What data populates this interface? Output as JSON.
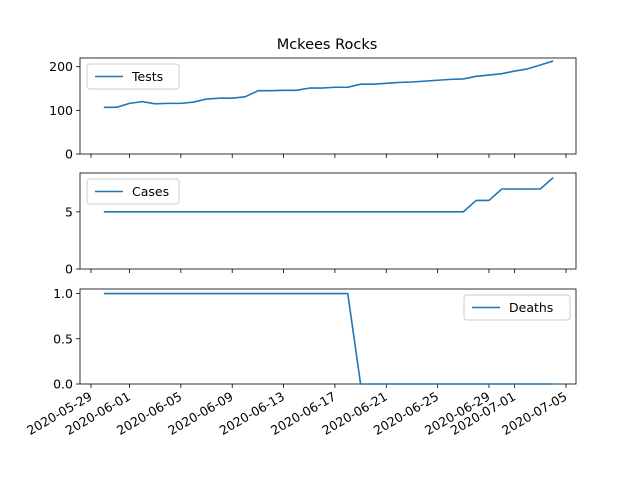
{
  "figure_title": "Mckees Rocks",
  "chart_data": {
    "type": "line",
    "title": "Mckees Rocks",
    "x_tick_labels": [
      "2020-05-29",
      "2020-06-01",
      "2020-06-05",
      "2020-06-09",
      "2020-06-13",
      "2020-06-17",
      "2020-06-21",
      "2020-06-25",
      "2020-06-29",
      "2020-07-01",
      "2020-07-05"
    ],
    "x": [
      "2020-05-30",
      "2020-05-31",
      "2020-06-01",
      "2020-06-02",
      "2020-06-03",
      "2020-06-04",
      "2020-06-05",
      "2020-06-06",
      "2020-06-07",
      "2020-06-08",
      "2020-06-09",
      "2020-06-10",
      "2020-06-11",
      "2020-06-12",
      "2020-06-13",
      "2020-06-14",
      "2020-06-15",
      "2020-06-16",
      "2020-06-17",
      "2020-06-18",
      "2020-06-19",
      "2020-06-20",
      "2020-06-21",
      "2020-06-22",
      "2020-06-23",
      "2020-06-24",
      "2020-06-25",
      "2020-06-26",
      "2020-06-27",
      "2020-06-28",
      "2020-06-29",
      "2020-06-30",
      "2020-07-01",
      "2020-07-02",
      "2020-07-03",
      "2020-07-04"
    ],
    "panels": [
      {
        "series_name": "Tests",
        "legend_position": "upper-left",
        "ylim": [
          0,
          220
        ],
        "yticks": [
          0,
          100,
          200
        ],
        "ytick_labels": [
          "0",
          "100",
          "200"
        ],
        "values": [
          107,
          107,
          116,
          120,
          115,
          116,
          116,
          119,
          126,
          128,
          128,
          131,
          145,
          145,
          146,
          146,
          151,
          151,
          153,
          153,
          160,
          160,
          162,
          164,
          165,
          167,
          169,
          171,
          172,
          178,
          181,
          184,
          190,
          195,
          204,
          213
        ]
      },
      {
        "series_name": "Cases",
        "legend_position": "upper-left",
        "ylim": [
          0,
          8.4
        ],
        "yticks": [
          0,
          5
        ],
        "ytick_labels": [
          "0",
          "5"
        ],
        "values": [
          5,
          5,
          5,
          5,
          5,
          5,
          5,
          5,
          5,
          5,
          5,
          5,
          5,
          5,
          5,
          5,
          5,
          5,
          5,
          5,
          5,
          5,
          5,
          5,
          5,
          5,
          5,
          5,
          5,
          6,
          6,
          7,
          7,
          7,
          7,
          8
        ]
      },
      {
        "series_name": "Deaths",
        "legend_position": "upper-right",
        "ylim": [
          0,
          1.05
        ],
        "yticks": [
          0,
          0.5,
          1.0
        ],
        "ytick_labels": [
          "0.0",
          "0.5",
          "1.0"
        ],
        "values": [
          1,
          1,
          1,
          1,
          1,
          1,
          1,
          1,
          1,
          1,
          1,
          1,
          1,
          1,
          1,
          1,
          1,
          1,
          1,
          1,
          0,
          0,
          0,
          0,
          0,
          0,
          0,
          0,
          0,
          0,
          0,
          0,
          0,
          0,
          0,
          0
        ]
      }
    ],
    "line_color": "#1f77b4",
    "grid": false
  }
}
